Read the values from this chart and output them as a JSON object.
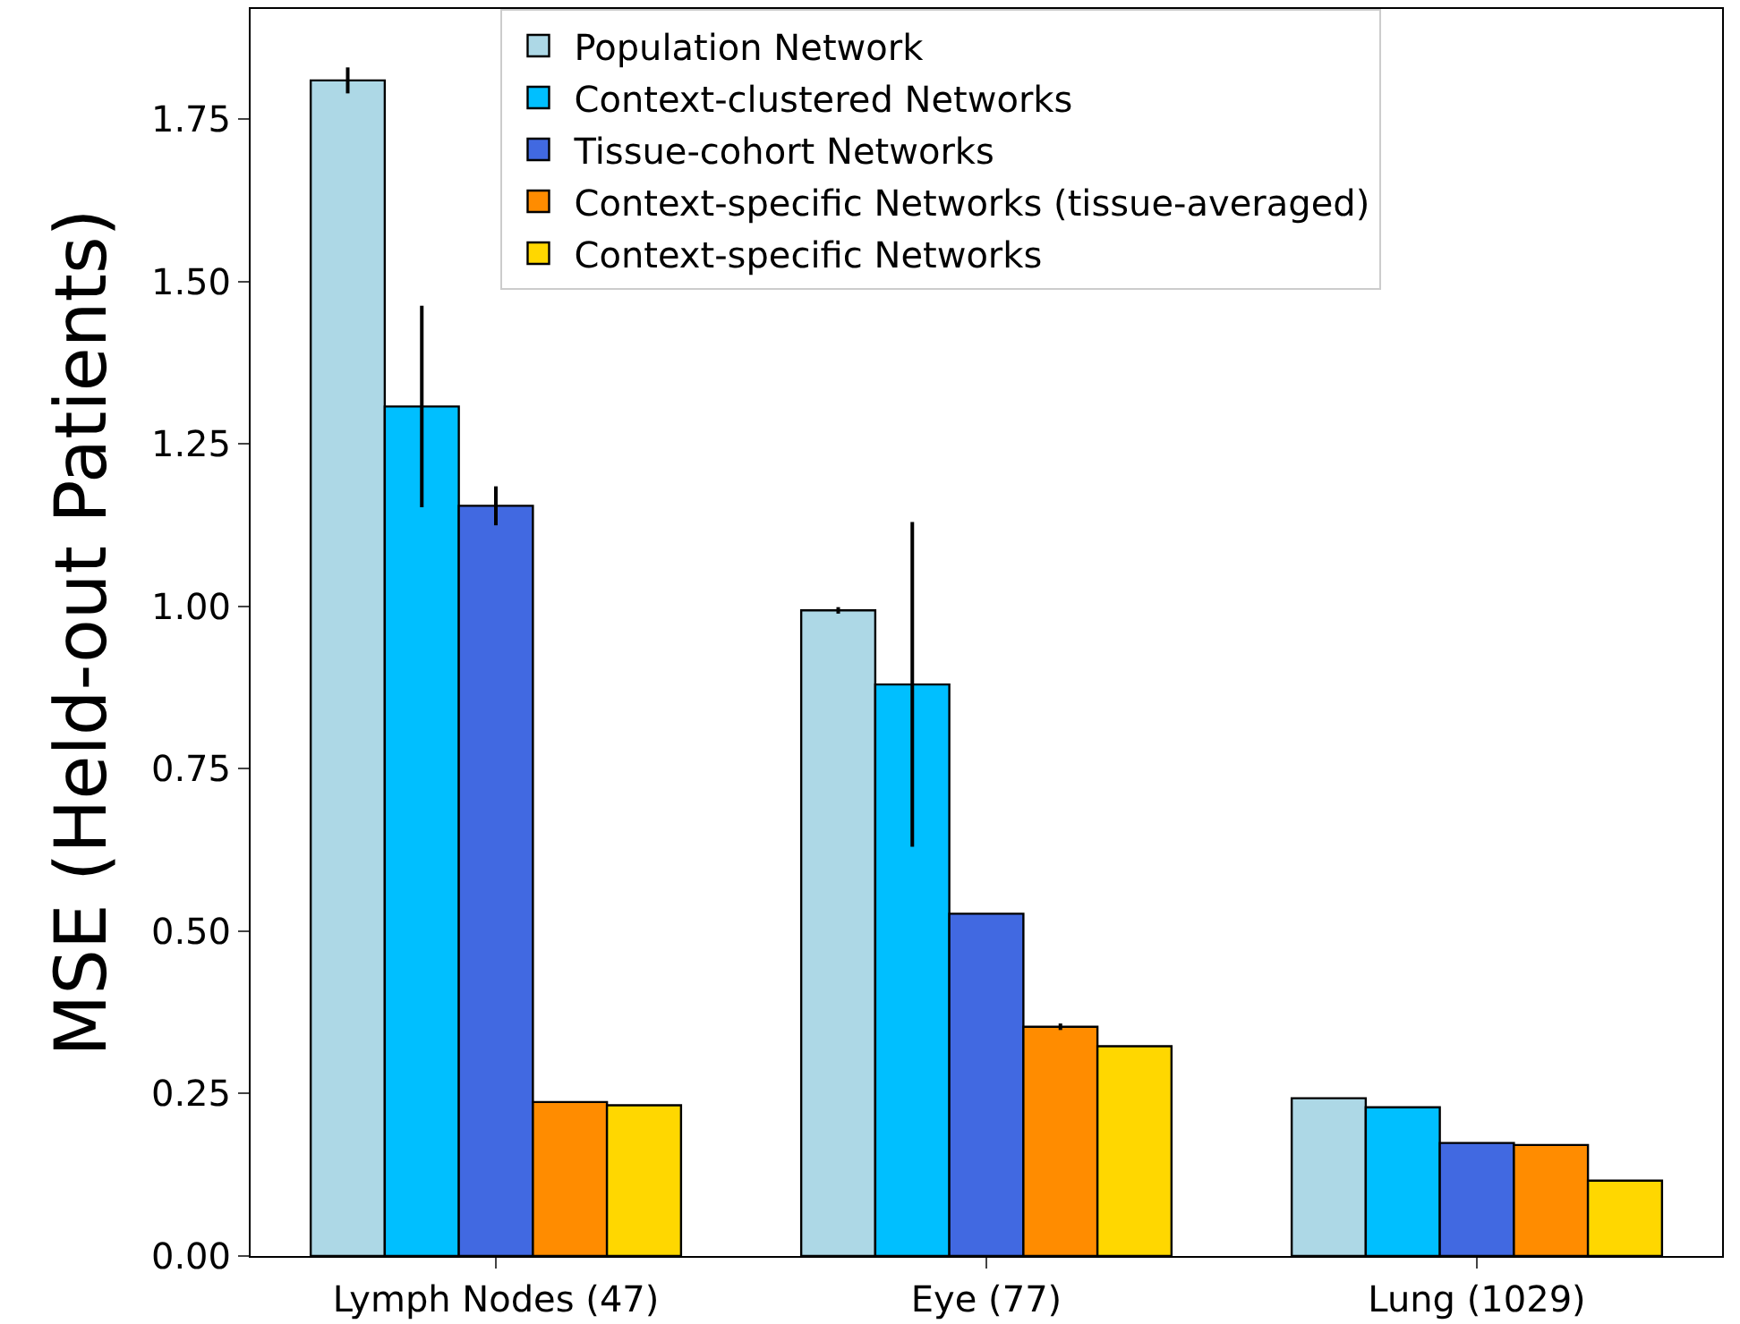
{
  "chart_data": {
    "type": "bar",
    "ylabel": "MSE (Held-out Patients)",
    "categories": [
      "Lymph Nodes (47)",
      "Eye (77)",
      "Lung (1029)"
    ],
    "series": [
      {
        "name": "Population Network",
        "color": "#add8e6",
        "values": [
          1.81,
          0.994,
          0.243
        ],
        "errors": [
          0.02,
          0.005,
          null
        ]
      },
      {
        "name": "Context-clustered Networks",
        "color": "#00bfff",
        "values": [
          1.308,
          0.88,
          0.229
        ],
        "errors": [
          0.155,
          0.25,
          null
        ]
      },
      {
        "name": "Tissue-cohort Networks",
        "color": "#4169e1",
        "values": [
          1.155,
          0.527,
          0.174
        ],
        "errors": [
          0.03,
          null,
          null
        ]
      },
      {
        "name": "Context-specific Networks (tissue-averaged)",
        "color": "#ff8c00",
        "values": [
          0.237,
          0.353,
          0.171
        ],
        "errors": [
          null,
          0.005,
          null
        ]
      },
      {
        "name": "Context-specific Networks",
        "color": "#ffd700",
        "values": [
          0.232,
          0.323,
          0.116
        ],
        "errors": [
          null,
          null,
          null
        ]
      }
    ],
    "ylim": [
      0,
      1.92
    ],
    "yticks": [
      {
        "value": 0,
        "label": "0.00"
      },
      {
        "value": 0.25,
        "label": "0.25"
      },
      {
        "value": 0.5,
        "label": "0.50"
      },
      {
        "value": 0.75,
        "label": "0.75"
      },
      {
        "value": 1,
        "label": "1.00"
      },
      {
        "value": 1.25,
        "label": "1.25"
      },
      {
        "value": 1.5,
        "label": "1.50"
      },
      {
        "value": 1.75,
        "label": "1.75"
      }
    ],
    "grid": false,
    "legend": "top right"
  }
}
